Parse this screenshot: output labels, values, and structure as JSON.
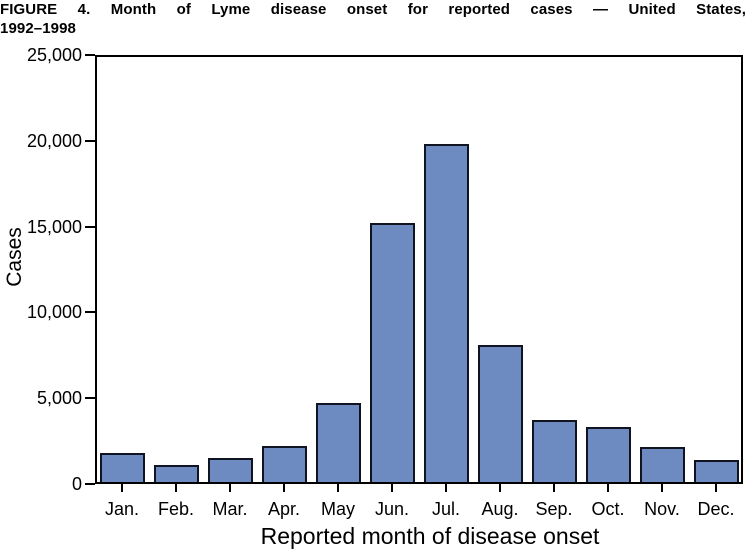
{
  "figure": {
    "title_line1": "FIGURE 4. Month of Lyme disease onset for reported cases — United States,",
    "title_line2": "1992–1998"
  },
  "chart_data": {
    "type": "bar",
    "title": "FIGURE 4. Month of Lyme disease onset for reported cases — United States, 1992–1998",
    "categories": [
      "Jan.",
      "Feb.",
      "Mar.",
      "Apr.",
      "May",
      "Jun.",
      "Jul.",
      "Aug.",
      "Sep.",
      "Oct.",
      "Nov.",
      "Dec."
    ],
    "values": [
      1700,
      1000,
      1400,
      2100,
      4650,
      15250,
      19900,
      8050,
      3650,
      3250,
      2050,
      1300
    ],
    "xlabel": "Reported month of disease onset",
    "ylabel": "Cases",
    "ylim": [
      0,
      25000
    ],
    "ytick_interval": 5000,
    "ytick_labels": [
      "0",
      "5,000",
      "10,000",
      "15,000",
      "20,000",
      "25,000"
    ],
    "grid": false,
    "legend": null,
    "bar_color": "#6d8bc0",
    "bar_border_color": "#101420",
    "axis_color": "#000000",
    "text_color": "#000000"
  }
}
